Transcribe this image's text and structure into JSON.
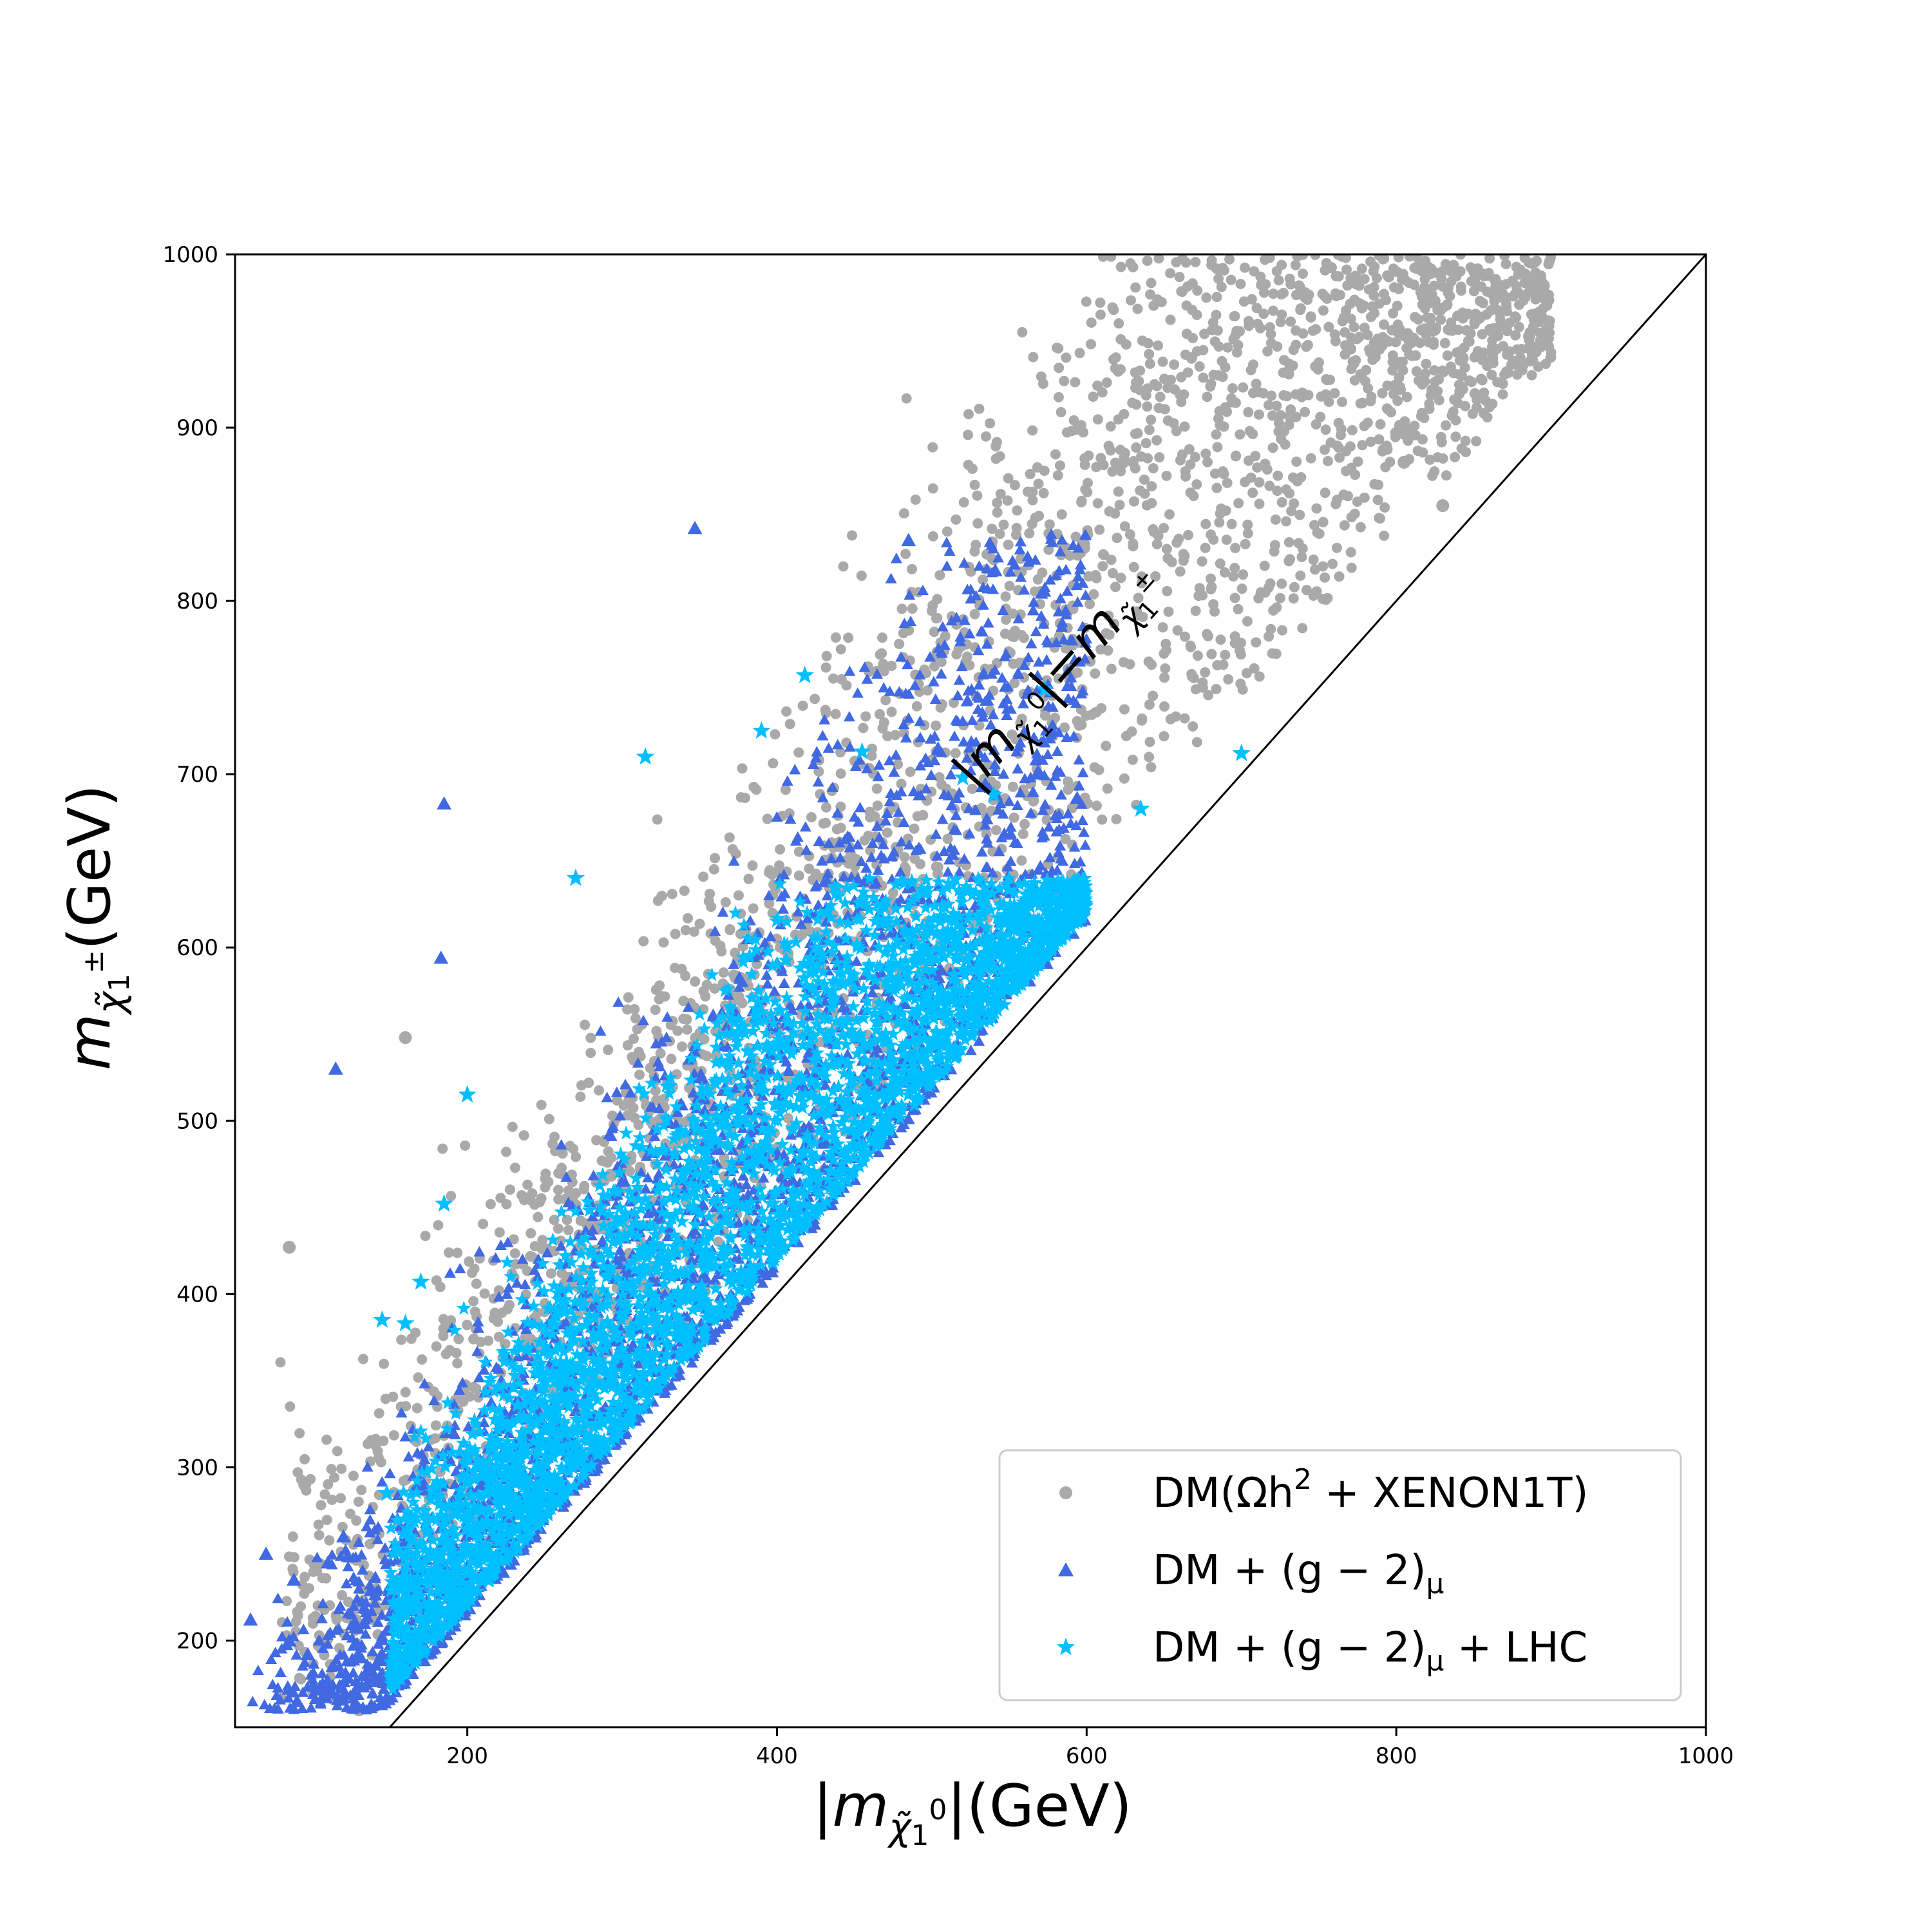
{
  "chart_data": {
    "type": "scatter",
    "title": "",
    "xlabel": "|m_{χ̃₁⁰}|(GeV)",
    "ylabel": "m_{χ̃₁^±}(GeV)",
    "xlim": [
      50,
      1000
    ],
    "ylim": [
      150,
      1000
    ],
    "xticks": [
      200,
      400,
      600,
      800,
      1000
    ],
    "yticks": [
      200,
      300,
      400,
      500,
      600,
      700,
      800,
      900,
      1000
    ],
    "grid": false,
    "legend_position": "lower-right",
    "diagonal_line": {
      "from": [
        150,
        150
      ],
      "to": [
        1000,
        1000
      ],
      "label": "|m_{χ̃₁⁰}|=m_{χ̃₁^±}",
      "label_anchor": [
        528,
        690
      ]
    },
    "series": [
      {
        "name": "DM(Ωh² + XENON1T)",
        "marker": "circle",
        "color": "#a9a9a9",
        "region": {
          "x_min": 75,
          "x_max": 900,
          "y_max": 1000,
          "min_gap": 40,
          "edge_offset": 150,
          "edge_slope": 1.35,
          "edge_spread": 40,
          "y_floor_min": 160,
          "n": 2600,
          "dense_center": [
            560,
            800
          ],
          "outliers": [
            [
              85,
              427
            ],
            [
              95,
              290
            ],
            [
              130,
              160
            ],
            [
              160,
              548
            ],
            [
              895,
              982
            ],
            [
              830,
              855
            ],
            [
              805,
              880
            ]
          ]
        }
      },
      {
        "name": "DM + (g − 2)μ",
        "marker": "triangle",
        "color": "#4169e1",
        "region": {
          "x_min": 60,
          "x_max": 600,
          "y_max": 840,
          "min_gap": 15,
          "edge_offset": 40,
          "edge_slope": 1.5,
          "edge_spread": 40,
          "y_floor_min": 160,
          "n": 3000,
          "outliers": [
            [
              60,
              212
            ],
            [
              70,
              250
            ],
            [
              88,
              235
            ],
            [
              85,
              200
            ],
            [
              90,
              165
            ],
            [
              97,
              192
            ],
            [
              110,
              245
            ],
            [
              115,
              530
            ],
            [
              120,
              260
            ],
            [
              185,
              683
            ],
            [
              183,
              594
            ],
            [
              347,
              842
            ],
            [
              485,
              835
            ]
          ]
        }
      },
      {
        "name": "DM + (g − 2)μ + LHC",
        "marker": "star",
        "color": "#00bfff",
        "region": {
          "x_min": 150,
          "x_max": 600,
          "y_max": 640,
          "min_gap": 20,
          "edge_offset": 30,
          "edge_slope": 1.45,
          "edge_spread": 30,
          "y_floor_min": 170,
          "n": 3200,
          "outliers": [
            [
              145,
              385
            ],
            [
              160,
              383
            ],
            [
              185,
              452
            ],
            [
              170,
              407
            ],
            [
              200,
              515
            ],
            [
              148,
              285
            ],
            [
              270,
              640
            ],
            [
              315,
              710
            ],
            [
              390,
              725
            ],
            [
              418,
              757
            ],
            [
              455,
              713
            ],
            [
              573,
              749
            ],
            [
              700,
              712
            ],
            [
              635,
              680
            ],
            [
              520,
              698
            ],
            [
              540,
              688
            ]
          ]
        }
      }
    ]
  }
}
